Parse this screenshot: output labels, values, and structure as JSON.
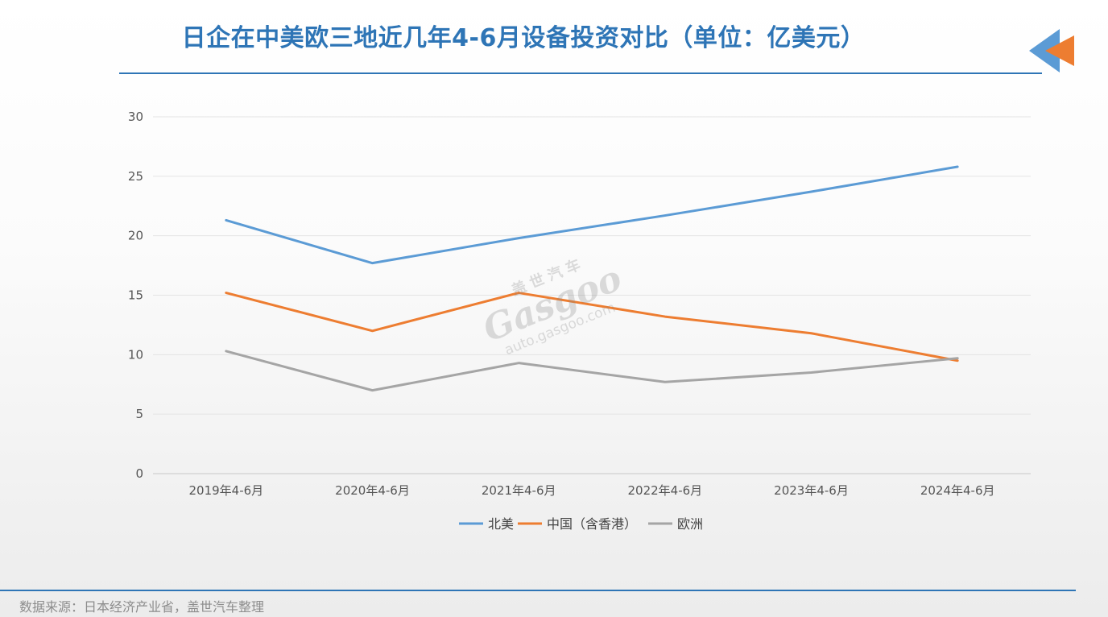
{
  "header": {
    "title": "日企在中美欧三地近几年4-6月设备投资对比（单位：亿美元）"
  },
  "footer": {
    "source": "数据来源：日本经济产业省，盖世汽车整理"
  },
  "watermark": {
    "cn": "盖世汽车",
    "logo": "Gasgoo",
    "url": "auto.gasgoo.com"
  },
  "colors": {
    "accent": "#2e75b6",
    "arrow": "#ed7d31",
    "arrow_back": "#5b9bd5"
  },
  "chart_data": {
    "type": "line",
    "categories": [
      "2019年4-6月",
      "2020年4-6月",
      "2021年4-6月",
      "2022年4-6月",
      "2023年4-6月",
      "2024年4-6月"
    ],
    "series": [
      {
        "name": "北美",
        "color": "#5b9bd5",
        "values": [
          21.3,
          17.7,
          19.8,
          21.7,
          23.7,
          25.8
        ]
      },
      {
        "name": "中国（含香港）",
        "color": "#ed7d31",
        "values": [
          15.2,
          12.0,
          15.2,
          13.2,
          11.8,
          9.5
        ]
      },
      {
        "name": "欧洲",
        "color": "#a5a5a5",
        "values": [
          10.3,
          7.0,
          9.3,
          7.7,
          8.5,
          9.7
        ]
      }
    ],
    "ylim": [
      0,
      30
    ],
    "yticks": [
      0,
      5,
      10,
      15,
      20,
      25,
      30
    ],
    "grid": true,
    "legend": "bottom"
  }
}
